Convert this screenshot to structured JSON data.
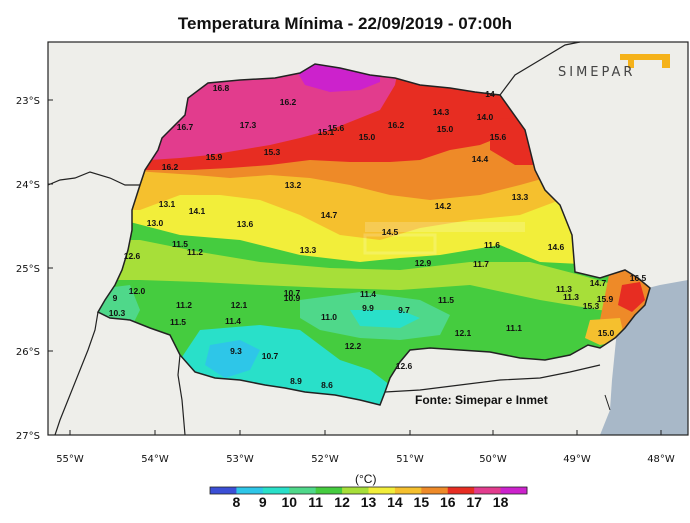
{
  "title": "Temperatura Mínima - 22/09/2019 - 07:00h",
  "logo_text": "SIMEPAR",
  "source": "Fonte: Simepar e Inmet",
  "unit": "(°C)",
  "lat_labels": [
    "23°S",
    "24°S",
    "25°S",
    "26°S",
    "27°S"
  ],
  "lon_labels": [
    "55°W",
    "54°W",
    "53°W",
    "52°W",
    "51°W",
    "50°W",
    "49°W",
    "48°W"
  ],
  "legend": {
    "values": [
      "8",
      "9",
      "10",
      "11",
      "12",
      "13",
      "14",
      "15",
      "16",
      "17",
      "18"
    ],
    "colors": [
      "#3b4fd6",
      "#2ec6e8",
      "#29e0c9",
      "#4fd88a",
      "#45cc3f",
      "#a7df39",
      "#f2ee3a",
      "#f5c02e",
      "#ee8a28",
      "#e72d22",
      "#e23c8d",
      "#cc22cc"
    ]
  },
  "colors": {
    "ocean": "#a8b8c8",
    "land_outside": "#eeeeea",
    "border": "#222222"
  },
  "stations": [
    {
      "v": "16.8"
    },
    {
      "v": "16.2"
    },
    {
      "v": "16.7"
    },
    {
      "v": "17.3"
    },
    {
      "v": "15.1"
    },
    {
      "v": "15.6"
    },
    {
      "v": "16.2"
    },
    {
      "v": "15.9"
    },
    {
      "v": "15.3"
    },
    {
      "v": "15.0"
    },
    {
      "v": "16.2"
    },
    {
      "v": "14.3"
    },
    {
      "v": "14.0"
    },
    {
      "v": "15.0"
    },
    {
      "v": "15.6"
    },
    {
      "v": "14.4"
    },
    {
      "v": "14"
    },
    {
      "v": "13.2"
    },
    {
      "v": "13.1"
    },
    {
      "v": "14.1"
    },
    {
      "v": "14.7"
    },
    {
      "v": "14.2"
    },
    {
      "v": "13.3"
    },
    {
      "v": "13.0"
    },
    {
      "v": "13.6"
    },
    {
      "v": "14.5"
    },
    {
      "v": "11.5"
    },
    {
      "v": "11.2"
    },
    {
      "v": "12.6"
    },
    {
      "v": "13.3"
    },
    {
      "v": "11.6"
    },
    {
      "v": "14.6"
    },
    {
      "v": "12.9"
    },
    {
      "v": "11.7"
    },
    {
      "v": "14.7"
    },
    {
      "v": "16.5"
    },
    {
      "v": "12.0"
    },
    {
      "v": "10.7"
    },
    {
      "v": "10.9"
    },
    {
      "v": "11.4"
    },
    {
      "v": "11.3"
    },
    {
      "v": "11.3"
    },
    {
      "v": "15.9"
    },
    {
      "v": "9"
    },
    {
      "v": "11.2"
    },
    {
      "v": "12.1"
    },
    {
      "v": "9.9"
    },
    {
      "v": "9.7"
    },
    {
      "v": "11.5"
    },
    {
      "v": "15.3"
    },
    {
      "v": "10.3"
    },
    {
      "v": "11.4"
    },
    {
      "v": "11.5"
    },
    {
      "v": "11.0"
    },
    {
      "v": "11.1"
    },
    {
      "v": "12.1"
    },
    {
      "v": "15.0"
    },
    {
      "v": "9.3"
    },
    {
      "v": "10.7"
    },
    {
      "v": "12.2"
    },
    {
      "v": "12.6"
    },
    {
      "v": "8.9"
    },
    {
      "v": "8.6"
    }
  ]
}
